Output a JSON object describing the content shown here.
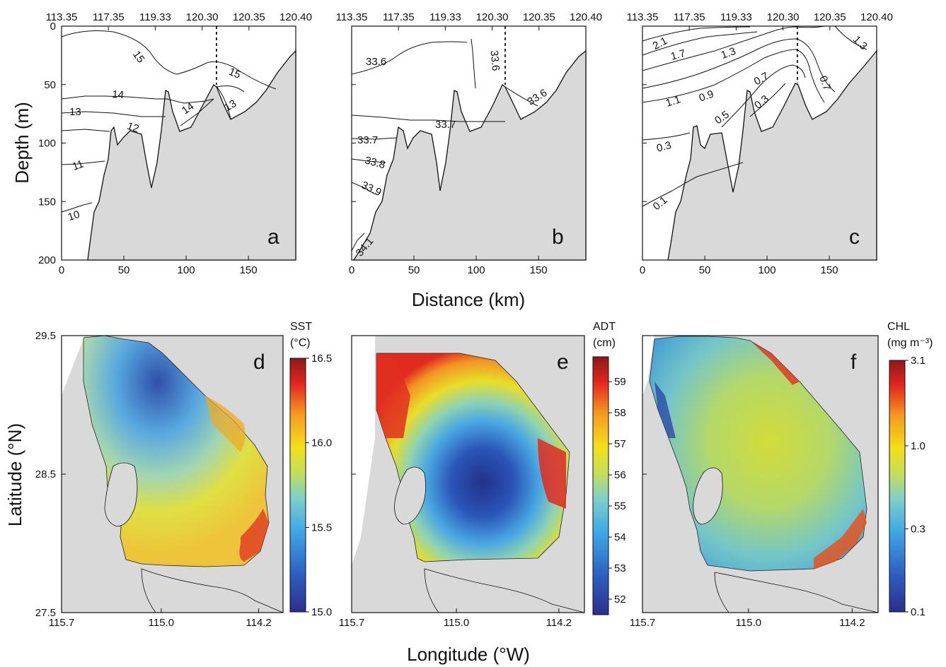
{
  "chart_data": [
    {
      "panel": "a",
      "type": "contour",
      "variable": "temperature",
      "top_ticks": [
        "113.35",
        "117.35",
        "119.33",
        "120.30",
        "120.35",
        "120.40"
      ],
      "xticks": [
        0,
        50,
        100,
        150
      ],
      "yticks": [
        0,
        50,
        100,
        150,
        200
      ],
      "xlim": [
        0,
        188
      ],
      "ylim": [
        0,
        200
      ],
      "contours": [
        15.0,
        14.0,
        13.0,
        12.0,
        11.0,
        10.0,
        15.0,
        14.0,
        13.0
      ]
    },
    {
      "panel": "b",
      "type": "contour",
      "variable": "salinity",
      "top_ticks": [
        "113.35",
        "117.35",
        "119.33",
        "120.30",
        "120.35",
        "120.40"
      ],
      "xticks": [
        0,
        50,
        100,
        150
      ],
      "xlim": [
        0,
        188
      ],
      "ylim": [
        0,
        200
      ],
      "contours": [
        33.6,
        33.6,
        33.6,
        33.7,
        33.7,
        33.8,
        33.9,
        34.1
      ]
    },
    {
      "panel": "c",
      "type": "contour",
      "variable": "chlorophyll",
      "top_ticks": [
        "113.35",
        "117.35",
        "119.33",
        "120.30",
        "120.35",
        "120.40"
      ],
      "xticks": [
        0,
        50,
        100,
        150
      ],
      "xlim": [
        0,
        188
      ],
      "ylim": [
        0,
        200
      ],
      "contours": [
        2.1,
        1.7,
        1.3,
        1.3,
        1.1,
        0.9,
        0.7,
        0.7,
        0.5,
        0.3,
        0.3,
        0.1
      ]
    },
    {
      "panel": "d",
      "type": "heatmap",
      "variable": "SST",
      "xticks": [
        "115.7",
        "115.0",
        "114.2"
      ],
      "yticks": [
        "29.5",
        "28.5",
        "27.5"
      ],
      "colorbar": {
        "title": [
          "SST",
          "(°C)"
        ],
        "ticks": [
          "16.5",
          "16.0",
          "15.5",
          "15.0"
        ],
        "range": [
          15.0,
          16.5
        ]
      }
    },
    {
      "panel": "e",
      "type": "heatmap",
      "variable": "ADT",
      "xticks": [
        "115.7",
        "115.0",
        "114.2"
      ],
      "colorbar": {
        "title": [
          "ADT",
          "(cm)"
        ],
        "ticks": [
          "59",
          "58",
          "57",
          "56",
          "55",
          "54",
          "53",
          "52"
        ],
        "range": [
          51.5,
          59.8
        ]
      }
    },
    {
      "panel": "f",
      "type": "heatmap",
      "variable": "CHL",
      "xticks": [
        "115.7",
        "115.0",
        "114.2"
      ],
      "colorbar": {
        "title": [
          "CHL",
          "(mg m⁻³)"
        ],
        "ticks": [
          "3.1",
          "1.0",
          "0.3",
          "0.1"
        ],
        "scale": "log"
      }
    }
  ],
  "axes": {
    "depth_label": "Depth (m)",
    "distance_label": "Distance (km)",
    "latitude_label": "Latitude (°N)",
    "longitude_label": "Longitude (°W)"
  },
  "panel_letters": [
    "a",
    "b",
    "c",
    "d",
    "e",
    "f"
  ],
  "colors": {
    "land": "#d9d9d9",
    "line": "#111111"
  }
}
